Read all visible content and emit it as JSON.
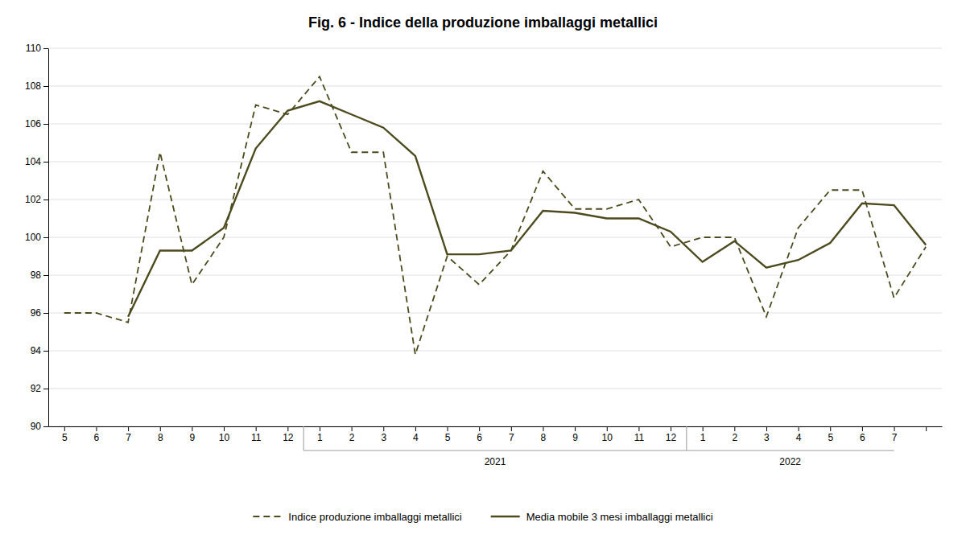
{
  "chart_data": {
    "type": "line",
    "title": "Fig. 6 - Indice della produzione imballaggi metallici",
    "categories": [
      "5",
      "6",
      "7",
      "8",
      "9",
      "10",
      "11",
      "12",
      "1",
      "2",
      "3",
      "4",
      "5",
      "6",
      "7",
      "8",
      "9",
      "10",
      "11",
      "12",
      "1",
      "2",
      "3",
      "4",
      "5",
      "6",
      "7",
      null
    ],
    "series": [
      {
        "name": "Indice produzione imballaggi metallici",
        "color": "#4d4a1e",
        "line_style": "dashed",
        "values": [
          96.0,
          96.0,
          95.5,
          104.5,
          97.5,
          100.0,
          107.0,
          106.5,
          108.5,
          104.5,
          104.5,
          93.8,
          99.0,
          97.5,
          99.3,
          103.5,
          101.5,
          101.5,
          102.0,
          99.5,
          100.0,
          100.0,
          95.8,
          100.5,
          102.5,
          102.5,
          96.8,
          99.5
        ]
      },
      {
        "name": "Media mobile 3 mesi imballaggi metallici",
        "color": "#4d4a1e",
        "line_style": "solid",
        "values": [
          null,
          null,
          95.8,
          99.3,
          99.3,
          100.5,
          104.7,
          106.7,
          107.2,
          106.5,
          105.8,
          104.3,
          99.1,
          99.1,
          99.3,
          101.4,
          101.3,
          101.0,
          101.0,
          100.3,
          98.7,
          99.8,
          98.4,
          98.8,
          99.7,
          101.8,
          101.7,
          99.6
        ]
      }
    ],
    "annotations": [
      {
        "text": "2021"
      },
      {
        "text": "2022"
      }
    ],
    "ylim": [
      90,
      110
    ],
    "yticks": [
      90,
      92,
      94,
      96,
      98,
      100,
      102,
      104,
      106,
      108,
      110
    ],
    "grid": true,
    "legend": "bottom"
  }
}
